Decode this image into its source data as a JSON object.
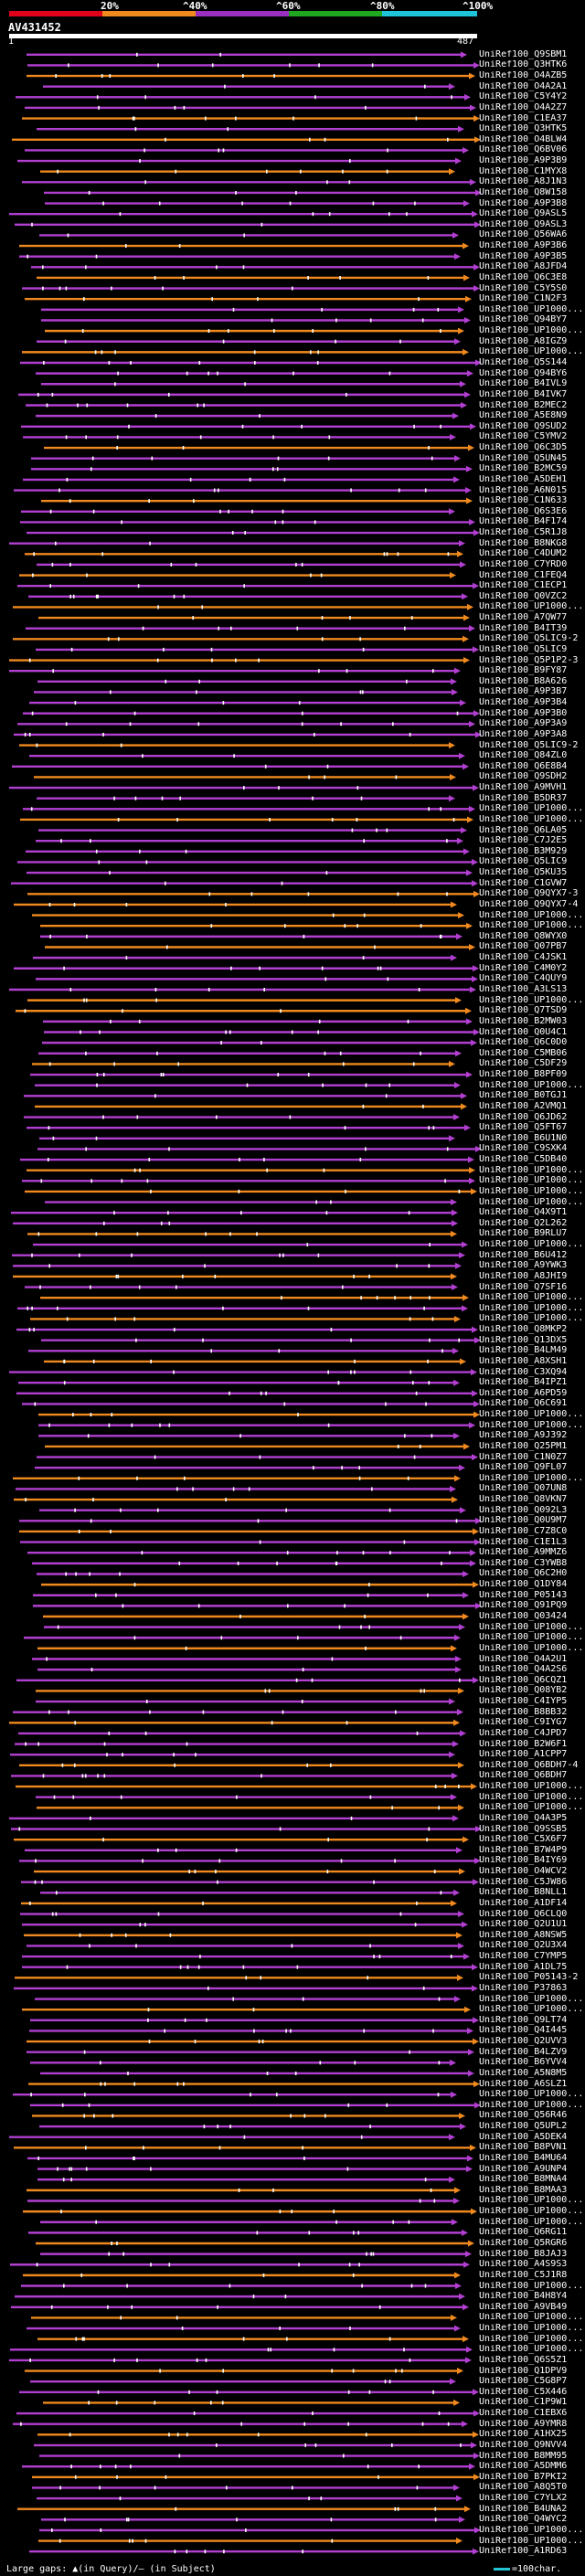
{
  "legend": {
    "ticks": [
      "20%",
      "^40%",
      "^60%",
      "^80%",
      "^100%"
    ],
    "colors": [
      "#e0001c",
      "#f08a1e",
      "#9b2fc0",
      "#1fa81f",
      "#1fc4d8"
    ]
  },
  "query": {
    "title": "AV431452",
    "start": "1",
    "end": "487"
  },
  "footer": {
    "gaps_text": "Large gaps: ▲(in Query)/— (in Subject)",
    "scale_text": "=100char."
  },
  "chart_data": {
    "type": "alignment",
    "query_length": 487,
    "colors": {
      "high": "#f08a1e",
      "mid": "#b23fd2"
    },
    "hits": [
      {
        "id": "UniRef100_Q9SBM1",
        "color": "mid"
      },
      {
        "id": "UniRef100_Q3HTK6",
        "color": "mid"
      },
      {
        "id": "UniRef100_O4AZB5",
        "color": "high"
      },
      {
        "id": "UniRef100_O4A2A1",
        "color": "mid"
      },
      {
        "id": "UniRef100_C5Y4Y2",
        "color": "mid"
      },
      {
        "id": "UniRef100_O4A2Z7",
        "color": "mid"
      },
      {
        "id": "UniRef100_C1EA37",
        "color": "high"
      },
      {
        "id": "UniRef100_Q3HTK5",
        "color": "mid"
      },
      {
        "id": "UniRef100_O4BLW4",
        "color": "high"
      },
      {
        "id": "UniRef100_Q6BV06",
        "color": "mid"
      },
      {
        "id": "UniRef100_A9P3B9",
        "color": "mid"
      },
      {
        "id": "UniRef100_C1MYX8",
        "color": "high"
      },
      {
        "id": "UniRef100_A8J1N3",
        "color": "mid"
      },
      {
        "id": "UniRef100_Q8W158",
        "color": "mid"
      },
      {
        "id": "UniRef100_A9P3B8",
        "color": "mid"
      },
      {
        "id": "UniRef100_Q9ASL5",
        "color": "mid"
      },
      {
        "id": "UniRef100_Q9ASL3",
        "color": "mid"
      },
      {
        "id": "UniRef100_Q56WA6",
        "color": "mid"
      },
      {
        "id": "UniRef100_A9P3B6",
        "color": "high"
      },
      {
        "id": "UniRef100_A9P3B5",
        "color": "mid"
      },
      {
        "id": "UniRef100_A8JFD4",
        "color": "mid"
      },
      {
        "id": "UniRef100_Q6C3E8",
        "color": "high"
      },
      {
        "id": "UniRef100_C5Y5S0",
        "color": "mid"
      },
      {
        "id": "UniRef100_C1N2F3",
        "color": "high"
      },
      {
        "id": "UniRef100_UP1000...",
        "color": "mid"
      },
      {
        "id": "UniRef100_Q94BY7",
        "color": "mid"
      },
      {
        "id": "UniRef100_UP1000...",
        "color": "high"
      },
      {
        "id": "UniRef100_A8IGZ9",
        "color": "mid"
      },
      {
        "id": "UniRef100_UP1000...",
        "color": "high"
      },
      {
        "id": "UniRef100_Q5S144",
        "color": "mid"
      },
      {
        "id": "UniRef100_Q94BY6",
        "color": "mid"
      },
      {
        "id": "UniRef100_B4IVL9",
        "color": "mid"
      },
      {
        "id": "UniRef100_B4IVK7",
        "color": "mid"
      },
      {
        "id": "UniRef100_B2MEC2",
        "color": "mid"
      },
      {
        "id": "UniRef100_A5E8N9",
        "color": "mid"
      },
      {
        "id": "UniRef100_Q9SUD2",
        "color": "mid"
      },
      {
        "id": "UniRef100_C5YMV2",
        "color": "mid"
      },
      {
        "id": "UniRef100_Q6C3D5",
        "color": "high"
      },
      {
        "id": "UniRef100_Q5UN45",
        "color": "mid"
      },
      {
        "id": "UniRef100_B2MC59",
        "color": "mid"
      },
      {
        "id": "UniRef100_A5DEH1",
        "color": "mid"
      },
      {
        "id": "UniRef100_A6N015",
        "color": "mid"
      },
      {
        "id": "UniRef100_C1N633",
        "color": "high"
      },
      {
        "id": "UniRef100_Q6S3E6",
        "color": "mid"
      },
      {
        "id": "UniRef100_B4F174",
        "color": "mid"
      },
      {
        "id": "UniRef100_C5R1J8",
        "color": "mid"
      },
      {
        "id": "UniRef100_B8NKG8",
        "color": "mid"
      },
      {
        "id": "UniRef100_C4DUM2",
        "color": "high"
      },
      {
        "id": "UniRef100_C7YRD0",
        "color": "mid"
      },
      {
        "id": "UniRef100_C1FEQ4",
        "color": "high"
      },
      {
        "id": "UniRef100_C1ECP1",
        "color": "mid"
      },
      {
        "id": "UniRef100_Q0VZC2",
        "color": "mid"
      },
      {
        "id": "UniRef100_UP1000...",
        "color": "high"
      },
      {
        "id": "UniRef100_A7QW77",
        "color": "high"
      },
      {
        "id": "UniRef100_B4IT39",
        "color": "mid"
      },
      {
        "id": "UniRef100_Q5LIC9-2",
        "color": "high"
      },
      {
        "id": "UniRef100_Q5LIC9",
        "color": "mid"
      },
      {
        "id": "UniRef100_Q5P1P2-3",
        "color": "high"
      },
      {
        "id": "UniRef100_B9FY87",
        "color": "mid"
      },
      {
        "id": "UniRef100_B8A626",
        "color": "mid"
      },
      {
        "id": "UniRef100_A9P3B7",
        "color": "mid"
      },
      {
        "id": "UniRef100_A9P3B4",
        "color": "mid"
      },
      {
        "id": "UniRef100_A9P3B0",
        "color": "mid"
      },
      {
        "id": "UniRef100_A9P3A9",
        "color": "mid"
      },
      {
        "id": "UniRef100_A9P3A8",
        "color": "mid"
      },
      {
        "id": "UniRef100_Q5LIC9-2",
        "color": "high"
      },
      {
        "id": "UniRef100_Q84ZL0",
        "color": "mid"
      },
      {
        "id": "UniRef100_Q6E8B4",
        "color": "mid"
      },
      {
        "id": "UniRef100_Q9SDH2",
        "color": "high"
      },
      {
        "id": "UniRef100_A9MVH1",
        "color": "mid"
      },
      {
        "id": "UniRef100_B5DR37",
        "color": "mid"
      },
      {
        "id": "UniRef100_UP1000...",
        "color": "mid"
      },
      {
        "id": "UniRef100_UP1000...",
        "color": "high"
      },
      {
        "id": "UniRef100_Q6LA05",
        "color": "mid"
      },
      {
        "id": "UniRef100_C7J2E5",
        "color": "mid"
      },
      {
        "id": "UniRef100_B3M929",
        "color": "mid"
      },
      {
        "id": "UniRef100_Q5LIC9",
        "color": "mid"
      },
      {
        "id": "UniRef100_Q5KU35",
        "color": "mid"
      },
      {
        "id": "UniRef100_C1GVW7",
        "color": "mid"
      },
      {
        "id": "UniRef100_Q9QYX7-3",
        "color": "high"
      },
      {
        "id": "UniRef100_Q9QYX7-4",
        "color": "high"
      },
      {
        "id": "UniRef100_UP1000...",
        "color": "high"
      },
      {
        "id": "UniRef100_UP1000...",
        "color": "high"
      },
      {
        "id": "UniRef100_Q8WYX0",
        "color": "mid"
      },
      {
        "id": "UniRef100_Q07PB7",
        "color": "high"
      },
      {
        "id": "UniRef100_C4JSK1",
        "color": "mid"
      },
      {
        "id": "UniRef100_C4M0Y2",
        "color": "mid"
      },
      {
        "id": "UniRef100_C4QUY9",
        "color": "mid"
      },
      {
        "id": "UniRef100_A3LS13",
        "color": "mid"
      },
      {
        "id": "UniRef100_UP1000...",
        "color": "high"
      },
      {
        "id": "UniRef100_Q7TSD9",
        "color": "high"
      },
      {
        "id": "UniRef100_B2MW03",
        "color": "mid"
      },
      {
        "id": "UniRef100_Q0U4C1",
        "color": "mid"
      },
      {
        "id": "UniRef100_Q6C0D0",
        "color": "mid"
      },
      {
        "id": "UniRef100_C5MB06",
        "color": "mid"
      },
      {
        "id": "UniRef100_C5DF29",
        "color": "high"
      },
      {
        "id": "UniRef100_B8PF09",
        "color": "mid"
      },
      {
        "id": "UniRef100_UP1000...",
        "color": "mid"
      },
      {
        "id": "UniRef100_B0TGJ1",
        "color": "mid"
      },
      {
        "id": "UniRef100_A2VMQ1",
        "color": "high"
      },
      {
        "id": "UniRef100_Q6JD62",
        "color": "mid"
      },
      {
        "id": "UniRef100_Q5FT67",
        "color": "mid"
      },
      {
        "id": "UniRef100_B6U1N0",
        "color": "mid"
      },
      {
        "id": "UniRef100_C9SXK4",
        "color": "mid"
      },
      {
        "id": "UniRef100_C5DB40",
        "color": "mid"
      },
      {
        "id": "UniRef100_UP1000...",
        "color": "high"
      },
      {
        "id": "UniRef100_UP1000...",
        "color": "mid"
      },
      {
        "id": "UniRef100_UP1000...",
        "color": "high"
      },
      {
        "id": "UniRef100_UP1000...",
        "color": "mid"
      },
      {
        "id": "UniRef100_Q4X9T1",
        "color": "mid"
      },
      {
        "id": "UniRef100_Q2L262",
        "color": "mid"
      },
      {
        "id": "UniRef100_B9RLU7",
        "color": "high"
      },
      {
        "id": "UniRef100_UP1000...",
        "color": "mid"
      },
      {
        "id": "UniRef100_B6U412",
        "color": "mid"
      },
      {
        "id": "UniRef100_A9YWK3",
        "color": "mid"
      },
      {
        "id": "UniRef100_A8JHI9",
        "color": "high"
      },
      {
        "id": "UniRef100_Q7SF16",
        "color": "mid"
      },
      {
        "id": "UniRef100_UP1000...",
        "color": "high"
      },
      {
        "id": "UniRef100_UP1000...",
        "color": "mid"
      },
      {
        "id": "UniRef100_UP1000...",
        "color": "high"
      },
      {
        "id": "UniRef100_Q8MKP2",
        "color": "mid"
      },
      {
        "id": "UniRef100_Q13DX5",
        "color": "mid"
      },
      {
        "id": "UniRef100_B4LM49",
        "color": "mid"
      },
      {
        "id": "UniRef100_A8XSH1",
        "color": "high"
      },
      {
        "id": "UniRef100_C3XQ94",
        "color": "mid"
      },
      {
        "id": "UniRef100_B4IPZ1",
        "color": "mid"
      },
      {
        "id": "UniRef100_A6PD59",
        "color": "mid"
      },
      {
        "id": "UniRef100_Q6C691",
        "color": "mid"
      },
      {
        "id": "UniRef100_UP1000...",
        "color": "high"
      },
      {
        "id": "UniRef100_UP1000...",
        "color": "mid"
      },
      {
        "id": "UniRef100_A9J392",
        "color": "mid"
      },
      {
        "id": "UniRef100_Q25PM1",
        "color": "high"
      },
      {
        "id": "UniRef100_C1N0Z7",
        "color": "mid"
      },
      {
        "id": "UniRef100_Q9FL07",
        "color": "mid"
      },
      {
        "id": "UniRef100_UP1000...",
        "color": "high"
      },
      {
        "id": "UniRef100_Q07UN8",
        "color": "mid"
      },
      {
        "id": "UniRef100_Q8VKN7",
        "color": "high"
      },
      {
        "id": "UniRef100_Q092L3",
        "color": "mid"
      },
      {
        "id": "UniRef100_Q0U9M7",
        "color": "mid"
      },
      {
        "id": "UniRef100_C7Z8C0",
        "color": "high"
      },
      {
        "id": "UniRef100_C1E1L3",
        "color": "mid"
      },
      {
        "id": "UniRef100_A9MMZ6",
        "color": "mid"
      },
      {
        "id": "UniRef100_C3YWB8",
        "color": "mid"
      },
      {
        "id": "UniRef100_Q6C2H0",
        "color": "mid"
      },
      {
        "id": "UniRef100_Q1DY84",
        "color": "high"
      },
      {
        "id": "UniRef100_P05143",
        "color": "mid"
      },
      {
        "id": "UniRef100_Q91PQ9",
        "color": "mid"
      },
      {
        "id": "UniRef100_Q03424",
        "color": "high"
      },
      {
        "id": "UniRef100_UP1000...",
        "color": "mid"
      },
      {
        "id": "UniRef100_UP1000...",
        "color": "mid"
      },
      {
        "id": "UniRef100_UP1000...",
        "color": "high"
      },
      {
        "id": "UniRef100_Q4A2U1",
        "color": "mid"
      },
      {
        "id": "UniRef100_Q4A2S6",
        "color": "mid"
      },
      {
        "id": "UniRef100_Q6CQZ1",
        "color": "mid"
      },
      {
        "id": "UniRef100_Q08YB2",
        "color": "high"
      },
      {
        "id": "UniRef100_C4IYP5",
        "color": "mid"
      },
      {
        "id": "UniRef100_B8BB32",
        "color": "mid"
      },
      {
        "id": "UniRef100_C9IYG7",
        "color": "high"
      },
      {
        "id": "UniRef100_C4JPD7",
        "color": "mid"
      },
      {
        "id": "UniRef100_B2W6F1",
        "color": "mid"
      },
      {
        "id": "UniRef100_A1CPP7",
        "color": "mid"
      },
      {
        "id": "UniRef100_Q6BDH7-4",
        "color": "high"
      },
      {
        "id": "UniRef100_Q6BDH7",
        "color": "mid"
      },
      {
        "id": "UniRef100_UP1000...",
        "color": "high"
      },
      {
        "id": "UniRef100_UP1000...",
        "color": "mid"
      },
      {
        "id": "UniRef100_UP1000...",
        "color": "high"
      },
      {
        "id": "UniRef100_Q4A3P5",
        "color": "mid"
      },
      {
        "id": "UniRef100_Q9SSB5",
        "color": "mid"
      },
      {
        "id": "UniRef100_C5X6F7",
        "color": "high"
      },
      {
        "id": "UniRef100_B7W4P9",
        "color": "mid"
      },
      {
        "id": "UniRef100_B4IY69",
        "color": "mid"
      },
      {
        "id": "UniRef100_O4WCV2",
        "color": "high"
      },
      {
        "id": "UniRef100_C5JW86",
        "color": "mid"
      },
      {
        "id": "UniRef100_B8NLL1",
        "color": "mid"
      },
      {
        "id": "UniRef100_A1DF14",
        "color": "high"
      },
      {
        "id": "UniRef100_Q6CLQ0",
        "color": "mid"
      },
      {
        "id": "UniRef100_Q2U1U1",
        "color": "mid"
      },
      {
        "id": "UniRef100_A8NSW5",
        "color": "high"
      },
      {
        "id": "UniRef100_Q2U3X4",
        "color": "mid"
      },
      {
        "id": "UniRef100_C7YMP5",
        "color": "mid"
      },
      {
        "id": "UniRef100_A1DL75",
        "color": "mid"
      },
      {
        "id": "UniRef100_P05143-2",
        "color": "high"
      },
      {
        "id": "UniRef100_P37863",
        "color": "mid"
      },
      {
        "id": "UniRef100_UP1000...",
        "color": "mid"
      },
      {
        "id": "UniRef100_UP1000...",
        "color": "high"
      },
      {
        "id": "UniRef100_Q9LT74",
        "color": "mid"
      },
      {
        "id": "UniRef100_Q4I445",
        "color": "mid"
      },
      {
        "id": "UniRef100_Q2UVV3",
        "color": "high"
      },
      {
        "id": "UniRef100_B4LZV9",
        "color": "mid"
      },
      {
        "id": "UniRef100_B6YVV4",
        "color": "mid"
      },
      {
        "id": "UniRef100_A5N8M5",
        "color": "mid"
      },
      {
        "id": "UniRef100_A6SLZ1",
        "color": "high"
      },
      {
        "id": "UniRef100_UP1000...",
        "color": "mid"
      },
      {
        "id": "UniRef100_UP1000...",
        "color": "mid"
      },
      {
        "id": "UniRef100_Q56R46",
        "color": "high"
      },
      {
        "id": "UniRef100_Q5UPL2",
        "color": "mid"
      },
      {
        "id": "UniRef100_A5DEK4",
        "color": "mid"
      },
      {
        "id": "UniRef100_B8PVN1",
        "color": "high"
      },
      {
        "id": "UniRef100_B4MU64",
        "color": "mid"
      },
      {
        "id": "UniRef100_A9UNP4",
        "color": "mid"
      },
      {
        "id": "UniRef100_B8MNA4",
        "color": "mid"
      },
      {
        "id": "UniRef100_B8MAA3",
        "color": "high"
      },
      {
        "id": "UniRef100_UP1000...",
        "color": "mid"
      },
      {
        "id": "UniRef100_UP1000...",
        "color": "high"
      },
      {
        "id": "UniRef100_UP1000...",
        "color": "mid"
      },
      {
        "id": "UniRef100_Q6RG11",
        "color": "mid"
      },
      {
        "id": "UniRef100_Q5RGR6",
        "color": "high"
      },
      {
        "id": "UniRef100_B8JAJ3",
        "color": "mid"
      },
      {
        "id": "UniRef100_A4S9S3",
        "color": "mid"
      },
      {
        "id": "UniRef100_C5J1R8",
        "color": "high"
      },
      {
        "id": "UniRef100_UP1000...",
        "color": "mid"
      },
      {
        "id": "UniRef100_B4H8Y4",
        "color": "mid"
      },
      {
        "id": "UniRef100_A9VB49",
        "color": "mid"
      },
      {
        "id": "UniRef100_UP1000...",
        "color": "high"
      },
      {
        "id": "UniRef100_UP1000...",
        "color": "mid"
      },
      {
        "id": "UniRef100_UP1000...",
        "color": "high"
      },
      {
        "id": "UniRef100_UP1000...",
        "color": "mid"
      },
      {
        "id": "UniRef100_Q6S5Z1",
        "color": "mid"
      },
      {
        "id": "UniRef100_Q1DPV9",
        "color": "high"
      },
      {
        "id": "UniRef100_C5G8P7",
        "color": "mid"
      },
      {
        "id": "UniRef100_C5X446",
        "color": "mid"
      },
      {
        "id": "UniRef100_C1P9W1",
        "color": "high"
      },
      {
        "id": "UniRef100_C1EBX6",
        "color": "mid"
      },
      {
        "id": "UniRef100_A9YMR8",
        "color": "mid"
      },
      {
        "id": "UniRef100_A1HX25",
        "color": "high"
      },
      {
        "id": "UniRef100_Q9NVV4",
        "color": "mid"
      },
      {
        "id": "UniRef100_B8MM95",
        "color": "mid"
      },
      {
        "id": "UniRef100_A5DMM6",
        "color": "mid"
      },
      {
        "id": "UniRef100_B7PKI2",
        "color": "high"
      },
      {
        "id": "UniRef100_A8Q5T0",
        "color": "mid"
      },
      {
        "id": "UniRef100_C7YLX2",
        "color": "mid"
      },
      {
        "id": "UniRef100_B4UNA2",
        "color": "high"
      },
      {
        "id": "UniRef100_Q4WYC2",
        "color": "mid"
      },
      {
        "id": "UniRef100_UP1000...",
        "color": "mid"
      },
      {
        "id": "UniRef100_UP1000...",
        "color": "high"
      },
      {
        "id": "UniRef100_A1RD63",
        "color": "mid"
      }
    ]
  }
}
